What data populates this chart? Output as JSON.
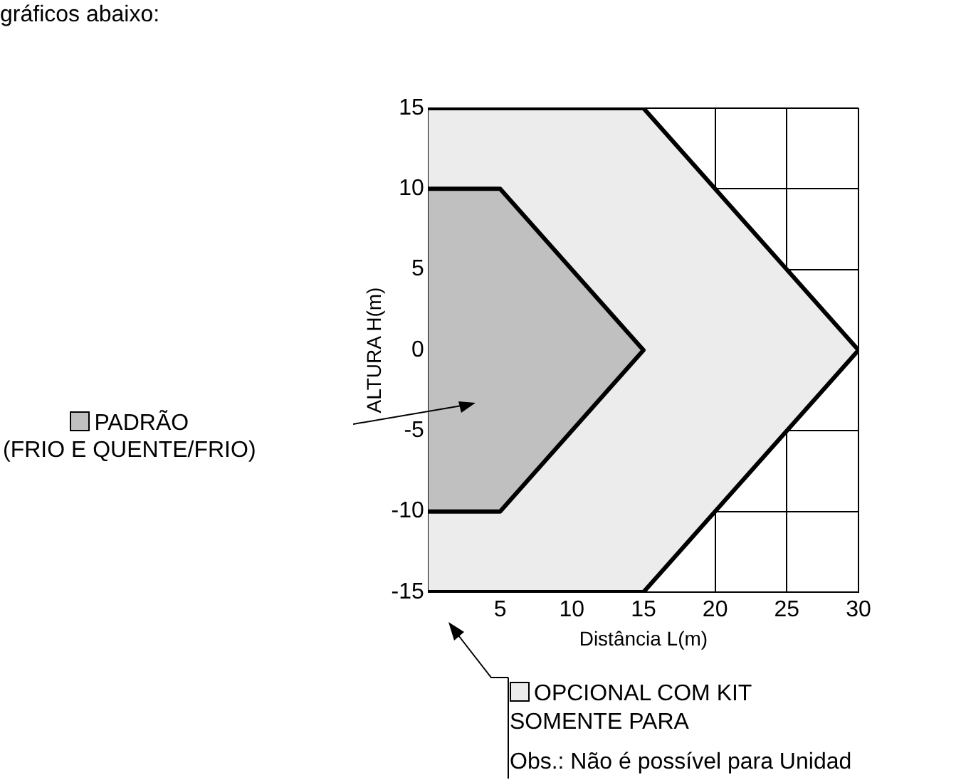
{
  "chart_data": {
    "type": "area",
    "xlabel": "Distância L(m)",
    "ylabel": "ALTURA H(m)",
    "series": [
      {
        "name": "OPCIONAL COM KIT",
        "color": "#ececec",
        "x": [
          0,
          15,
          30,
          15,
          0
        ],
        "values": [
          15,
          15,
          0,
          -15,
          -15
        ]
      },
      {
        "name": "PADRÃO\n(FRIO E QUENTE/FRIO)",
        "color": "#c0c0c0",
        "x": [
          0,
          5,
          15,
          5,
          0
        ],
        "values": [
          10,
          10,
          0,
          -10,
          -10
        ]
      }
    ],
    "xlim": [
      0,
      30
    ],
    "xticks": [
      5,
      10,
      15,
      20,
      25,
      30
    ],
    "ylim": [
      -15,
      15
    ],
    "yticks": [
      -15,
      -10,
      -5,
      0,
      5,
      10,
      15
    ],
    "grid": true,
    "legend": "bottom",
    "annotations": [
      "gráficos abaixo:",
      "SOMENTE PARA",
      "Obs.: Não é possível para Unidad"
    ]
  }
}
